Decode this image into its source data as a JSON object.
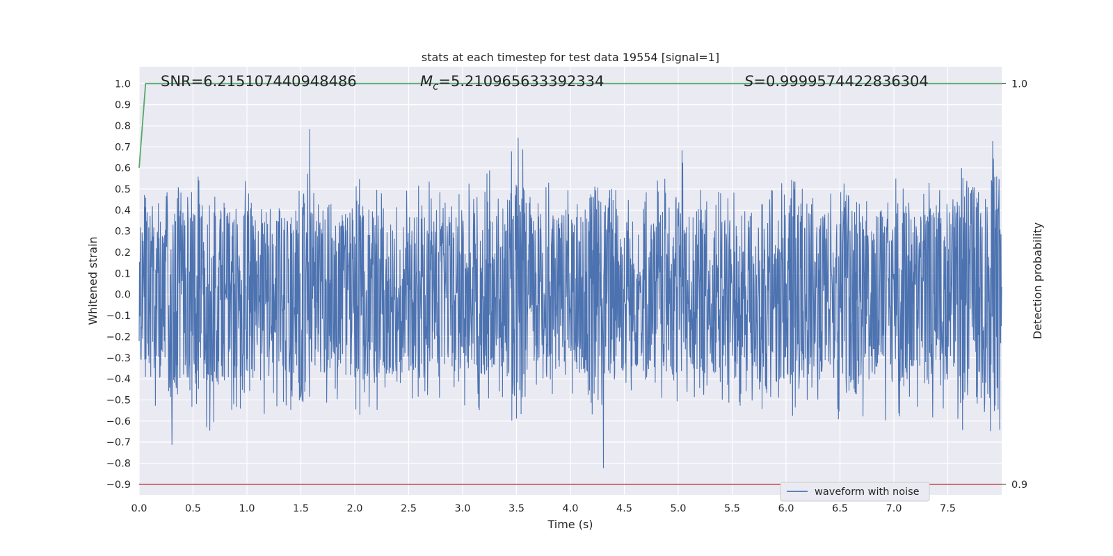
{
  "chart_data": {
    "type": "line",
    "title": "stats at each timestep for test data 19554 [signal=1]",
    "xlabel": "Time (s)",
    "ylabel": "Whitened strain",
    "y2label": "Detection probability",
    "xlim": [
      0.0,
      8.0
    ],
    "ylim": [
      -0.95,
      1.08
    ],
    "x_ticks": [
      "0.0",
      "0.5",
      "1.0",
      "1.5",
      "2.0",
      "2.5",
      "3.0",
      "3.5",
      "4.0",
      "4.5",
      "5.0",
      "5.5",
      "6.0",
      "6.5",
      "7.0",
      "7.5"
    ],
    "y_ticks": [
      "1.0",
      "0.9",
      "0.8",
      "0.7",
      "0.6",
      "0.5",
      "0.4",
      "0.3",
      "0.2",
      "0.1",
      "0.0",
      "−0.1",
      "−0.2",
      "−0.3",
      "−0.4",
      "−0.5",
      "−0.6",
      "−0.7",
      "−0.8",
      "−0.9"
    ],
    "y2_ticks": [
      "1.0",
      "0.9"
    ],
    "grid": true,
    "legend_position": "lower-right",
    "annotations": {
      "snr_label": "SNR",
      "snr_value": "6.215107440948486",
      "mc_symbol": "M",
      "mc_subscript": "c",
      "mc_value": "5.210965633392334",
      "s_symbol": "S",
      "s_value": "0.9999574422836304"
    },
    "series": [
      {
        "name": "waveform with noise",
        "color": "#4c72b0",
        "envelope_upper": [
          0.5,
          0.45,
          0.55,
          0.5,
          0.6,
          0.5,
          0.45,
          0.5,
          0.55,
          0.5,
          0.45,
          0.5,
          0.85,
          0.5,
          0.45,
          0.5,
          0.55,
          0.5,
          0.5,
          0.45,
          0.5,
          0.55,
          0.5,
          0.5,
          0.55,
          0.5,
          0.6,
          0.5,
          0.75,
          0.5,
          0.55,
          0.5,
          0.5,
          0.5,
          0.55,
          0.6,
          0.5,
          0.5,
          0.5,
          0.55,
          0.75,
          0.5,
          0.55,
          0.5,
          0.5,
          0.5,
          0.65,
          0.5,
          0.55,
          0.6,
          0.5,
          0.55,
          0.5,
          0.55,
          0.5,
          0.6,
          0.55,
          0.6,
          0.55,
          0.55,
          0.55,
          0.6,
          0.65,
          0.55,
          1.0
        ],
        "envelope_lower": [
          -0.55,
          -0.6,
          -0.75,
          -0.6,
          -0.55,
          -0.65,
          -0.6,
          -0.55,
          -0.55,
          -0.6,
          -0.55,
          -0.6,
          -0.55,
          -0.5,
          -0.55,
          -0.55,
          -0.6,
          -0.55,
          -0.5,
          -0.55,
          -0.5,
          -0.55,
          -0.6,
          -0.5,
          -0.55,
          -0.55,
          -0.5,
          -0.5,
          -0.6,
          -0.55,
          -0.5,
          -0.5,
          -0.55,
          -0.5,
          -0.9,
          -0.6,
          -0.55,
          -0.5,
          -0.5,
          -0.55,
          -0.6,
          -0.5,
          -0.55,
          -0.5,
          -0.6,
          -0.55,
          -0.55,
          -0.5,
          -0.55,
          -0.6,
          -0.55,
          -0.55,
          -0.6,
          -0.8,
          -0.6,
          -0.55,
          -0.6,
          -0.65,
          -0.55,
          -0.6,
          -0.55,
          -0.6,
          -0.75,
          -0.8,
          -0.65
        ]
      },
      {
        "name": "",
        "color": "#55a868",
        "x": [
          0.0,
          0.06,
          8.0
        ],
        "y": [
          0.6,
          1.0,
          1.0
        ]
      },
      {
        "name": "",
        "color": "#c44e52",
        "x": [
          0.0,
          8.0
        ],
        "y": [
          -0.9,
          -0.9
        ]
      }
    ]
  }
}
